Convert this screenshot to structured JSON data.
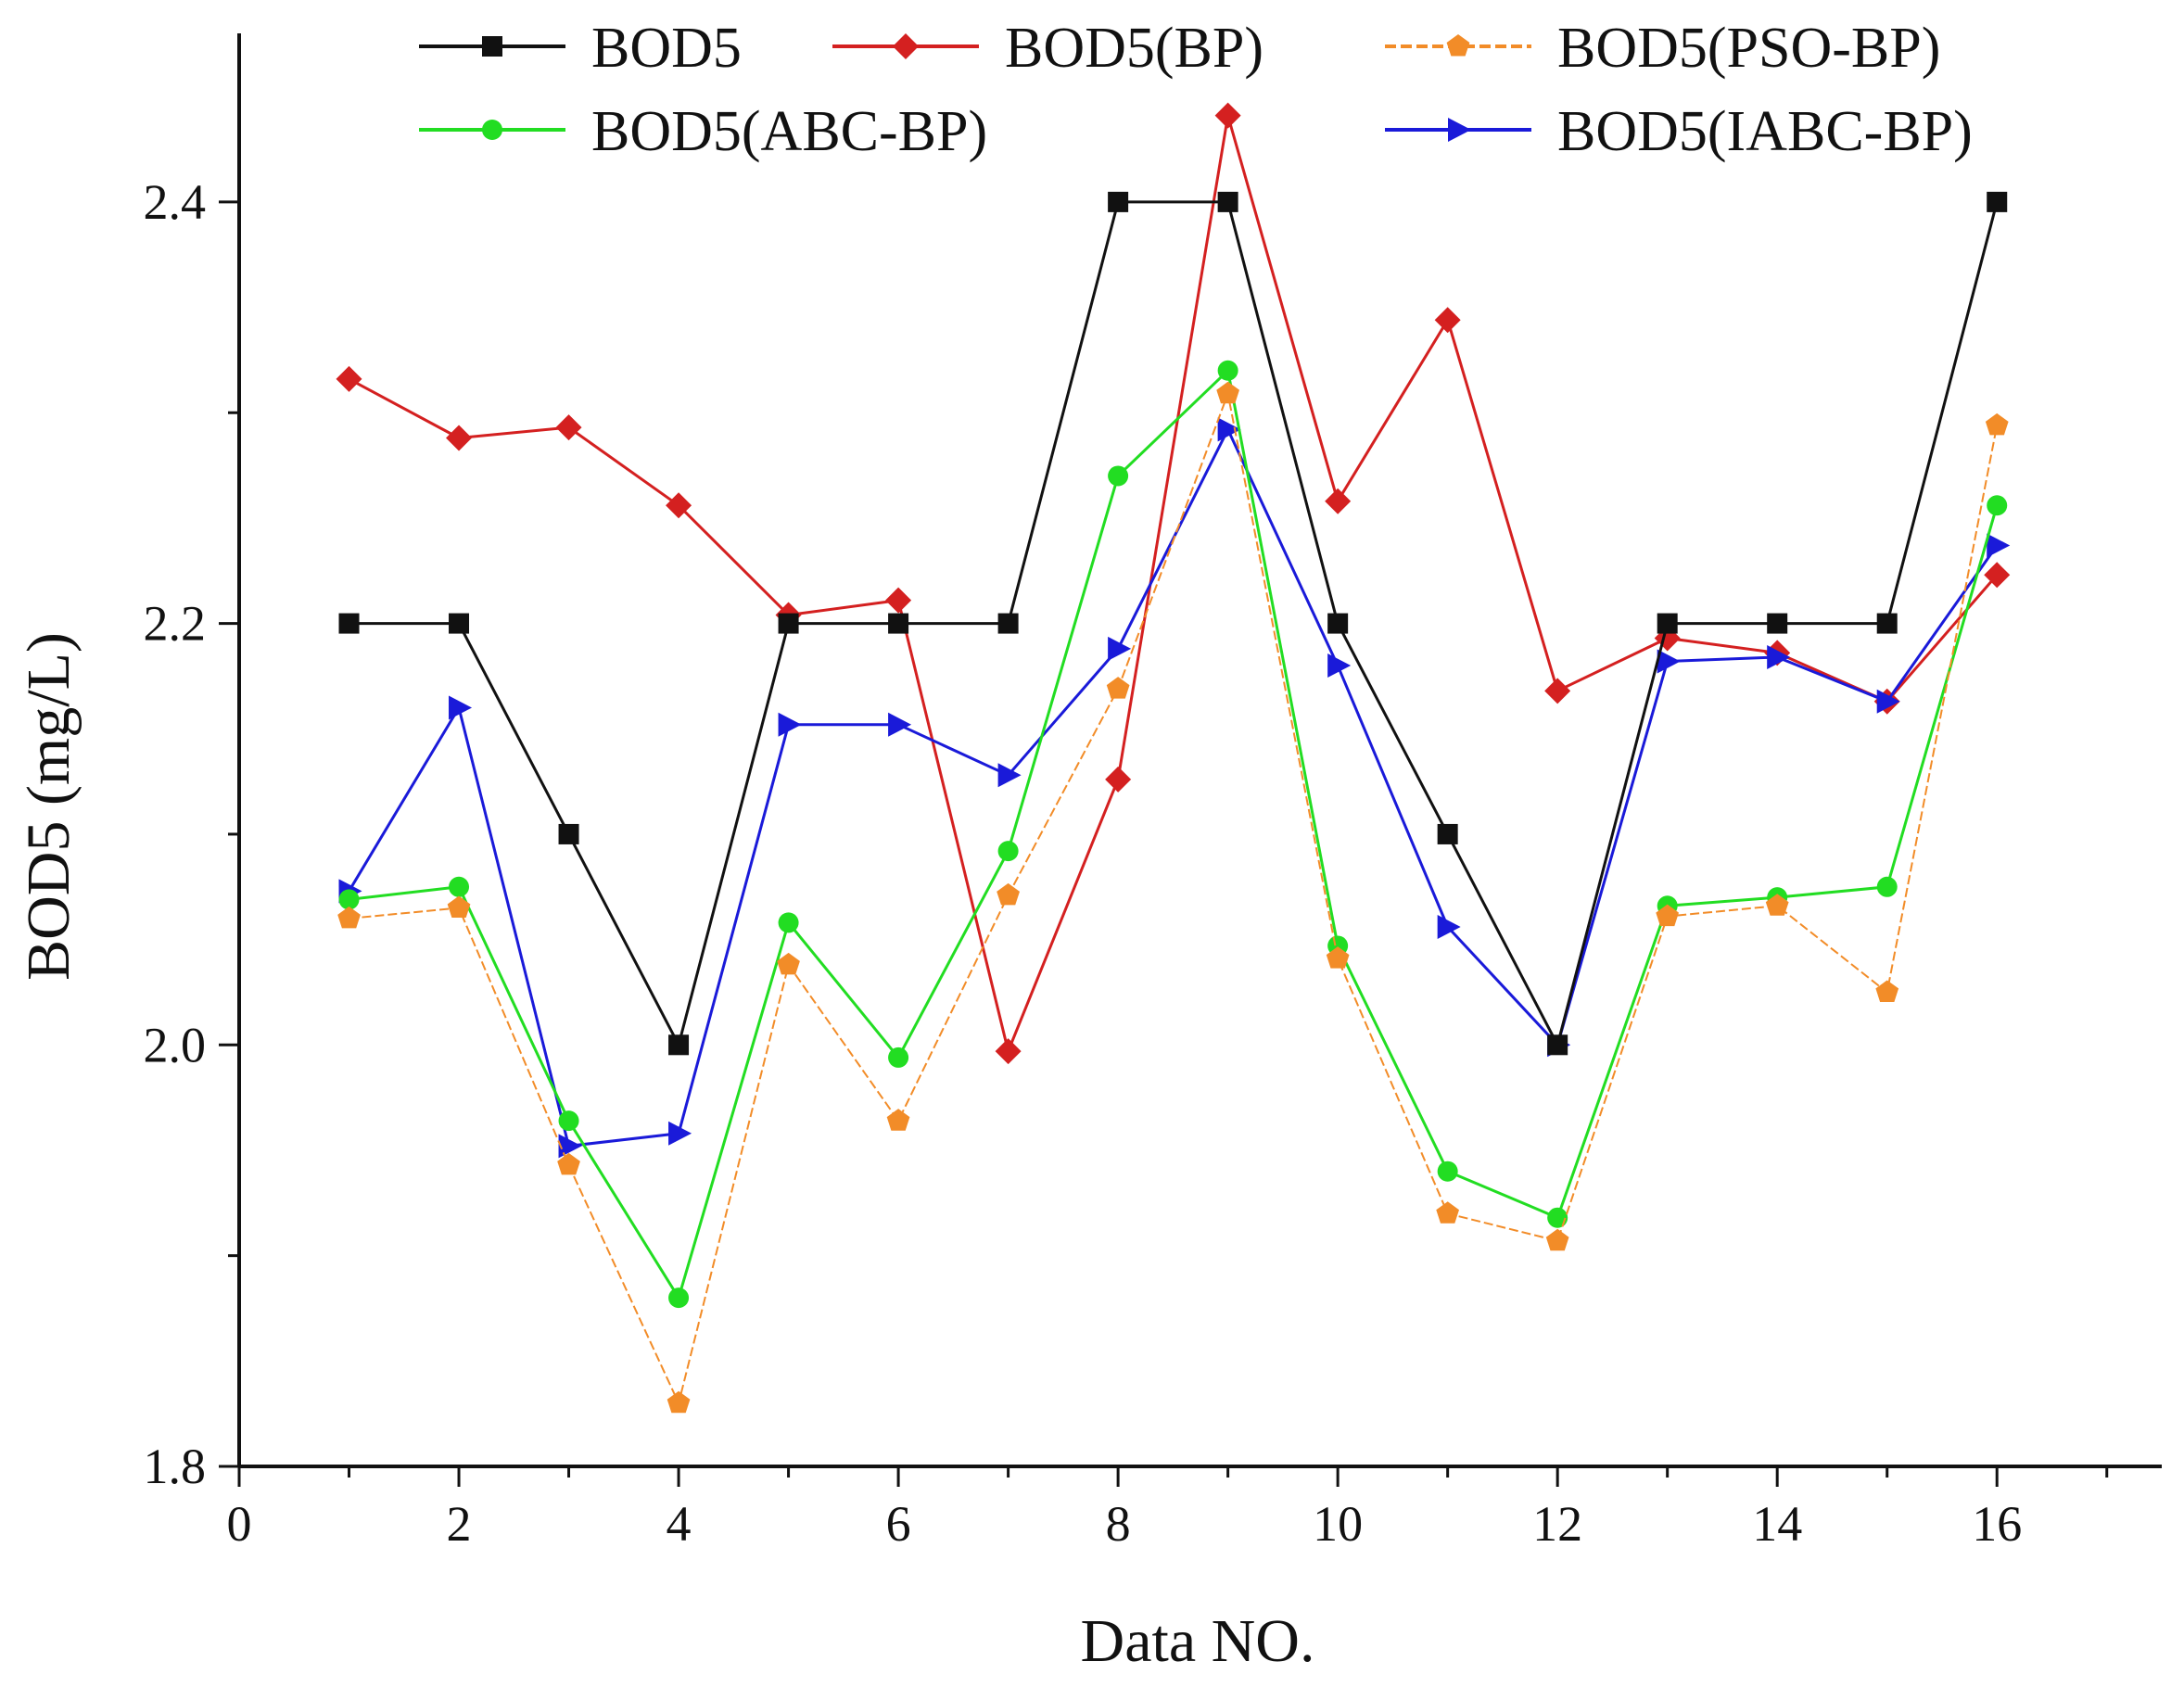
{
  "chart_data": {
    "type": "line",
    "title": "",
    "xlabel": "Data NO.",
    "ylabel": "BOD5 (mg/L)",
    "xlim": [
      0,
      17.5
    ],
    "ylim": [
      1.8,
      2.48
    ],
    "xticks": [
      0,
      2,
      4,
      6,
      8,
      10,
      12,
      14,
      16
    ],
    "xtick_labels": [
      "0",
      "2",
      "4",
      "6",
      "8",
      "10",
      "12",
      "14",
      "16"
    ],
    "yticks": [
      1.8,
      2.0,
      2.2,
      2.4
    ],
    "ytick_labels": [
      "1.8",
      "2.0",
      "2.2",
      "2.4"
    ],
    "grid": false,
    "legend_position": "top",
    "x": [
      1,
      2,
      3,
      4,
      5,
      6,
      7,
      8,
      9,
      10,
      11,
      12,
      13,
      14,
      15,
      16
    ],
    "series": [
      {
        "name": "BOD5",
        "color": "#111111",
        "marker": "square",
        "values": [
          2.2,
          2.2,
          2.1,
          2.0,
          2.2,
          2.2,
          2.2,
          2.4,
          2.4,
          2.2,
          2.1,
          2.0,
          2.2,
          2.2,
          2.2,
          2.4
        ]
      },
      {
        "name": "BOD5(BP)",
        "color": "#d42020",
        "marker": "diamond",
        "values": [
          2.316,
          2.288,
          2.293,
          2.256,
          2.204,
          2.211,
          1.997,
          2.126,
          2.441,
          2.258,
          2.344,
          2.168,
          2.193,
          2.186,
          2.163,
          2.223
        ]
      },
      {
        "name": "BOD5(PSO-BP)",
        "color": "#f28c28",
        "marker": "pentagon",
        "values": [
          2.06,
          2.065,
          1.943,
          1.83,
          2.038,
          1.964,
          2.071,
          2.169,
          2.309,
          2.041,
          1.92,
          1.907,
          2.061,
          2.066,
          2.025,
          2.294
        ]
      },
      {
        "name": "BOD5(ABC-BP)",
        "color": "#22dd22",
        "marker": "circle",
        "values": [
          2.069,
          2.075,
          1.964,
          1.88,
          2.058,
          1.994,
          2.092,
          2.27,
          2.32,
          2.047,
          1.94,
          1.918,
          2.066,
          2.07,
          2.075,
          2.256
        ]
      },
      {
        "name": "BOD5(IABC-BP)",
        "color": "#1a1ad9",
        "marker": "triangle-right",
        "values": [
          2.073,
          2.16,
          1.952,
          1.958,
          2.152,
          2.152,
          2.128,
          2.188,
          2.292,
          2.18,
          2.056,
          2.0,
          2.182,
          2.184,
          2.163,
          2.237
        ]
      }
    ]
  }
}
